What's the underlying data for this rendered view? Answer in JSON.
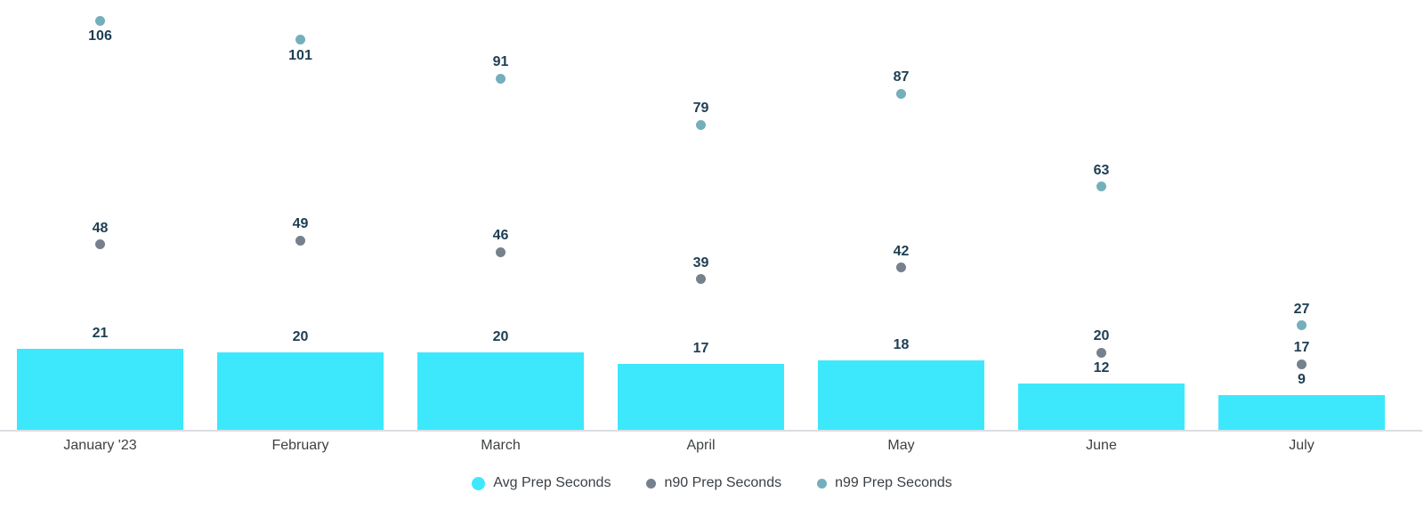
{
  "chart": {
    "background_color": "#ffffff",
    "axis_line_color": "#dadde2",
    "value_label_color": "#1e3e52",
    "category_label_color": "#3e4245",
    "legend_text_color": "#3b4045"
  },
  "chart_data": {
    "type": "bar",
    "title": "",
    "xlabel": "",
    "ylabel": "",
    "categories": [
      "January '23",
      "February",
      "March",
      "April",
      "May",
      "June",
      "July"
    ],
    "series": [
      {
        "name": "Avg Prep Seconds",
        "type": "bar",
        "color": "#3de8fc",
        "values": [
          21,
          20,
          20,
          17,
          18,
          12,
          9
        ]
      },
      {
        "name": "n90 Prep Seconds",
        "type": "scatter",
        "color": "#76818d",
        "values": [
          48,
          49,
          46,
          39,
          42,
          20,
          17
        ]
      },
      {
        "name": "n99 Prep Seconds",
        "type": "scatter",
        "color": "#74afbb",
        "values": [
          106,
          101,
          91,
          79,
          87,
          63,
          27
        ]
      }
    ],
    "ylim": [
      0,
      111
    ],
    "grid": false,
    "y_axis_visible": false,
    "data_labels": true,
    "legend_position": "bottom"
  },
  "legend": {
    "marker_shape": "circle"
  }
}
